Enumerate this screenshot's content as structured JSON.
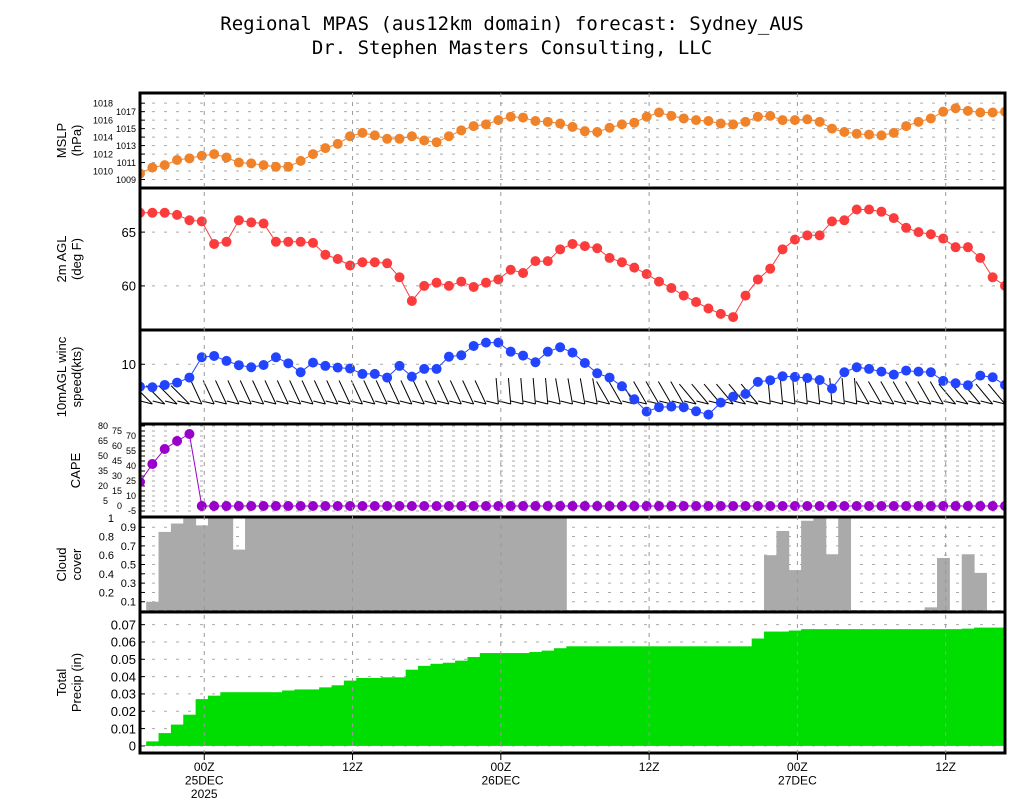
{
  "title": {
    "line1": "Regional MPAS (aus12km domain) forecast: Sydney_AUS",
    "line2": "Dr. Stephen Masters Consulting, LLC"
  },
  "chart_data": {
    "type": "line",
    "x_unit": "forecast hour index (hourly)",
    "x_ticks": [
      {
        "x": 5.2,
        "lines": [
          "00Z",
          "25DEC",
          "2025"
        ]
      },
      {
        "x": 17.2,
        "lines": [
          "12Z"
        ]
      },
      {
        "x": 29.2,
        "lines": [
          "00Z",
          "26DEC"
        ]
      },
      {
        "x": 41.2,
        "lines": [
          "12Z"
        ]
      },
      {
        "x": 53.2,
        "lines": [
          "00Z",
          "27DEC"
        ]
      },
      {
        "x": 65.2,
        "lines": [
          "12Z"
        ]
      }
    ],
    "panels": [
      {
        "name": "mslp",
        "type": "line",
        "ylabel": [
          "MSLP",
          "(hPa)"
        ],
        "color": "#f0822a",
        "ylim": [
          1008.0,
          1019.2
        ],
        "ticks": [
          1009,
          1010,
          1011,
          1012,
          1013,
          1014,
          1015,
          1016,
          1017,
          1018
        ],
        "values": [
          1009.7,
          1010.4,
          1010.7,
          1011.3,
          1011.5,
          1011.8,
          1012.0,
          1011.6,
          1011.0,
          1010.9,
          1010.7,
          1010.5,
          1010.5,
          1011.2,
          1012.0,
          1012.7,
          1013.2,
          1014.1,
          1014.5,
          1014.2,
          1013.8,
          1013.8,
          1014.1,
          1013.6,
          1013.4,
          1014.1,
          1014.8,
          1015.3,
          1015.5,
          1016.0,
          1016.4,
          1016.3,
          1015.9,
          1015.8,
          1015.6,
          1015.2,
          1014.7,
          1014.6,
          1015.1,
          1015.5,
          1015.7,
          1016.4,
          1016.9,
          1016.5,
          1016.2,
          1016.0,
          1015.9,
          1015.6,
          1015.5,
          1015.8,
          1016.4,
          1016.5,
          1016.0,
          1016.0,
          1016.1,
          1015.8,
          1015.0,
          1014.6,
          1014.4,
          1014.3,
          1014.2,
          1014.5,
          1015.3,
          1015.8,
          1016.2,
          1017.0,
          1017.4,
          1017.1,
          1016.9,
          1016.9,
          1017.0
        ]
      },
      {
        "name": "temperature",
        "type": "line",
        "ylabel": [
          "2m AGL",
          "(deg F)"
        ],
        "color": "#fa3c3c",
        "ylim": [
          55.9,
          69.1
        ],
        "ticks": [
          60,
          65
        ],
        "values": [
          66.8,
          66.8,
          66.8,
          66.6,
          66.1,
          66.0,
          63.9,
          64.1,
          66.1,
          65.9,
          65.8,
          64.1,
          64.1,
          64.1,
          64.0,
          62.9,
          62.5,
          61.9,
          62.2,
          62.2,
          62.1,
          60.8,
          58.6,
          60.0,
          60.3,
          60.0,
          60.4,
          59.9,
          60.3,
          60.6,
          61.5,
          61.2,
          62.3,
          62.3,
          63.4,
          63.9,
          63.7,
          63.5,
          62.6,
          62.2,
          61.7,
          61.1,
          60.4,
          59.8,
          59.1,
          58.5,
          57.9,
          57.4,
          57.1,
          59.1,
          60.6,
          61.6,
          63.4,
          64.3,
          64.7,
          64.7,
          66.0,
          66.1,
          67.1,
          67.1,
          66.9,
          66.3,
          65.4,
          65.0,
          64.8,
          64.4,
          63.6,
          63.6,
          62.6,
          60.8,
          60.0
        ]
      },
      {
        "name": "wind",
        "type": "line",
        "ylabel": [
          "10mAGL winc",
          "speed(kts)"
        ],
        "color": "#2244ff",
        "ylim": [
          4.98,
          12.88
        ],
        "ticks": [
          10
        ],
        "values": [
          8.12,
          8.07,
          8.26,
          8.46,
          8.88,
          10.59,
          10.7,
          10.28,
          9.92,
          9.75,
          9.94,
          10.59,
          10.08,
          9.33,
          10.14,
          9.86,
          9.72,
          9.64,
          9.19,
          9.19,
          8.88,
          9.86,
          8.96,
          9.61,
          9.61,
          10.64,
          10.76,
          11.54,
          11.82,
          11.82,
          11.06,
          10.73,
          10.17,
          11.06,
          11.43,
          10.98,
          10.11,
          9.24,
          8.88,
          8.15,
          7.06,
          6.02,
          6.39,
          6.44,
          6.39,
          6.05,
          5.77,
          6.78,
          7.28,
          7.51,
          8.52,
          8.66,
          8.99,
          8.94,
          8.85,
          8.68,
          7.96,
          9.33,
          9.75,
          9.61,
          9.38,
          9.13,
          9.47,
          9.38,
          9.33,
          8.6,
          8.4,
          8.24,
          9.05,
          8.91,
          8.26
        ],
        "wind_dir_deg": [
          315,
          315,
          315,
          315,
          315,
          335,
          335,
          335,
          335,
          335,
          335,
          335,
          335,
          335,
          335,
          335,
          335,
          335,
          335,
          335,
          335,
          335,
          335,
          335,
          335,
          335,
          335,
          335,
          335,
          355,
          355,
          355,
          355,
          355,
          350,
          350,
          350,
          350,
          330,
          330,
          330,
          330,
          330,
          330,
          330,
          320,
          320,
          320,
          320,
          320,
          320,
          355,
          355,
          355,
          355,
          355,
          355,
          355,
          355,
          330,
          330,
          330,
          330,
          330,
          330,
          330,
          320,
          320,
          320,
          320,
          320
        ]
      },
      {
        "name": "cape",
        "type": "line",
        "ylabel": [
          "CAPE"
        ],
        "color": "#9900cc",
        "ylim": [
          -11,
          82
        ],
        "ticks": [
          -5,
          0,
          5,
          10,
          15,
          20,
          25,
          30,
          35,
          40,
          45,
          50,
          55,
          60,
          65,
          70,
          75,
          80
        ],
        "values": [
          24,
          42,
          57,
          65,
          72,
          0,
          0,
          0,
          0,
          0,
          0,
          0,
          0,
          0,
          0,
          0,
          0,
          0,
          0,
          0,
          0,
          0,
          0,
          0,
          0,
          0,
          0,
          0,
          0,
          0,
          0,
          0,
          0,
          0,
          0,
          0,
          0,
          0,
          0,
          0,
          0,
          0,
          0,
          0,
          0,
          0,
          0,
          0,
          0,
          0,
          0,
          0,
          0,
          0,
          0,
          0,
          0,
          0,
          0,
          0,
          0,
          0,
          0,
          0,
          0,
          0,
          0,
          0,
          0,
          0,
          0
        ]
      },
      {
        "name": "cloud",
        "type": "bar",
        "ylabel": [
          "Cloud",
          "cover"
        ],
        "color": "#aaaaaa",
        "ylim": [
          -0.01,
          1.01
        ],
        "ticks": [
          0.1,
          0.2,
          0.3,
          0.4,
          0.5,
          0.6,
          0.7,
          0.8,
          0.9,
          1
        ],
        "values": [
          0,
          0.1,
          0.85,
          0.94,
          1,
          0.92,
          1,
          1,
          0.66,
          1,
          1,
          1,
          1,
          1,
          1,
          1,
          1,
          1,
          1,
          1,
          1,
          1,
          1,
          1,
          1,
          1,
          1,
          1,
          1,
          1,
          1,
          1,
          1,
          1,
          1,
          0.01,
          0.01,
          0.01,
          0.01,
          0.01,
          0.01,
          0.01,
          0.01,
          0.01,
          0.01,
          0.01,
          0.01,
          0.01,
          0.01,
          0.01,
          0.01,
          0.6,
          0.86,
          0.44,
          0.97,
          1,
          0.61,
          1,
          0.01,
          0.01,
          0.01,
          0.01,
          0.01,
          0.01,
          0.04,
          0.57,
          0,
          0.61,
          0.41,
          0,
          0
        ]
      },
      {
        "name": "precip",
        "type": "area",
        "ylabel": [
          "Total",
          "Precip (in)"
        ],
        "color": "#00dd00",
        "ylim": [
          -0.0041,
          0.0773
        ],
        "ticks": [
          0,
          0.01,
          0.02,
          0.03,
          0.04,
          0.05,
          0.06,
          0.07
        ],
        "values": [
          0.0004,
          0.0026,
          0.0074,
          0.0123,
          0.018,
          0.027,
          0.029,
          0.031,
          0.031,
          0.031,
          0.031,
          0.031,
          0.032,
          0.0326,
          0.0326,
          0.0338,
          0.035,
          0.0377,
          0.0392,
          0.0392,
          0.0396,
          0.0396,
          0.044,
          0.0462,
          0.0474,
          0.048,
          0.0492,
          0.0513,
          0.0536,
          0.0536,
          0.0536,
          0.0536,
          0.0542,
          0.055,
          0.0564,
          0.0575,
          0.0575,
          0.0575,
          0.0575,
          0.0575,
          0.0575,
          0.0575,
          0.0575,
          0.0575,
          0.0575,
          0.0575,
          0.0575,
          0.0575,
          0.0575,
          0.0575,
          0.062,
          0.066,
          0.066,
          0.0666,
          0.0674,
          0.0674,
          0.0674,
          0.0674,
          0.0674,
          0.0674,
          0.0674,
          0.0674,
          0.0674,
          0.0674,
          0.0674,
          0.0674,
          0.0674,
          0.0677,
          0.0683,
          0.0683,
          0.0683
        ]
      }
    ]
  }
}
